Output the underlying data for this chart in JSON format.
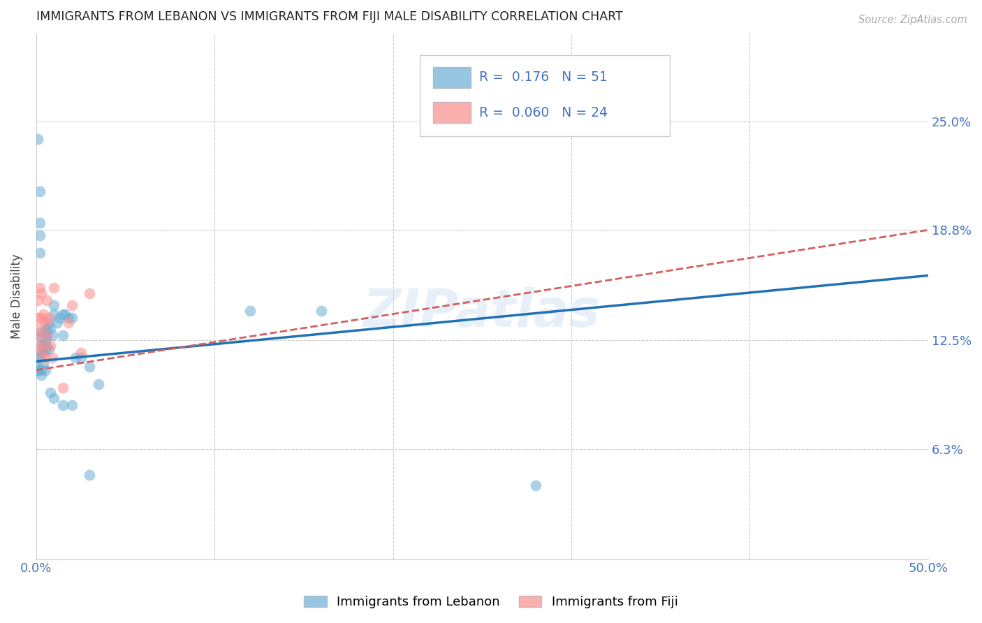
{
  "title": "IMMIGRANTS FROM LEBANON VS IMMIGRANTS FROM FIJI MALE DISABILITY CORRELATION CHART",
  "source": "Source: ZipAtlas.com",
  "ylabel": "Male Disability",
  "xlim": [
    0.0,
    0.5
  ],
  "ylim": [
    0.0,
    0.3
  ],
  "yticks": [
    0.0,
    0.063,
    0.125,
    0.188,
    0.25
  ],
  "ytick_labels": [
    "",
    "6.3%",
    "12.5%",
    "18.8%",
    "25.0%"
  ],
  "xticks": [
    0.0,
    0.1,
    0.2,
    0.3,
    0.4,
    0.5
  ],
  "xtick_labels": [
    "0.0%",
    "",
    "",
    "",
    "",
    "50.0%"
  ],
  "lebanon_R": 0.176,
  "lebanon_N": 51,
  "fiji_R": 0.06,
  "fiji_N": 24,
  "lebanon_color": "#6baed6",
  "fiji_color": "#fc8d8d",
  "lebanon_line_color": "#2171b5",
  "fiji_line_color": "#d45f5f",
  "watermark": "ZIPatlas",
  "lebanon_line_x0": 0.0,
  "lebanon_line_y0": 0.113,
  "lebanon_line_x1": 0.5,
  "lebanon_line_y1": 0.162,
  "fiji_line_x0": 0.0,
  "fiji_line_y0": 0.108,
  "fiji_line_x1": 0.5,
  "fiji_line_y1": 0.188,
  "lebanon_x": [
    0.001,
    0.001,
    0.001,
    0.001,
    0.002,
    0.002,
    0.002,
    0.002,
    0.002,
    0.003,
    0.003,
    0.003,
    0.003,
    0.003,
    0.004,
    0.004,
    0.004,
    0.005,
    0.005,
    0.005,
    0.006,
    0.006,
    0.006,
    0.007,
    0.007,
    0.008,
    0.009,
    0.01,
    0.01,
    0.012,
    0.013,
    0.015,
    0.015,
    0.016,
    0.018,
    0.02,
    0.022,
    0.025,
    0.03,
    0.035,
    0.12,
    0.16,
    0.001,
    0.003,
    0.005,
    0.008,
    0.01,
    0.015,
    0.02,
    0.03,
    0.28
  ],
  "lebanon_y": [
    0.24,
    0.115,
    0.11,
    0.108,
    0.21,
    0.185,
    0.192,
    0.175,
    0.115,
    0.13,
    0.127,
    0.122,
    0.118,
    0.105,
    0.122,
    0.118,
    0.112,
    0.13,
    0.125,
    0.12,
    0.132,
    0.128,
    0.122,
    0.135,
    0.12,
    0.132,
    0.128,
    0.14,
    0.145,
    0.135,
    0.138,
    0.14,
    0.128,
    0.14,
    0.138,
    0.138,
    0.115,
    0.115,
    0.11,
    0.1,
    0.142,
    0.142,
    0.108,
    0.108,
    0.108,
    0.095,
    0.092,
    0.088,
    0.088,
    0.048,
    0.042
  ],
  "fiji_x": [
    0.001,
    0.001,
    0.001,
    0.002,
    0.002,
    0.002,
    0.003,
    0.003,
    0.003,
    0.004,
    0.004,
    0.005,
    0.005,
    0.006,
    0.006,
    0.007,
    0.008,
    0.009,
    0.01,
    0.015,
    0.018,
    0.02,
    0.025,
    0.03
  ],
  "fiji_y": [
    0.148,
    0.138,
    0.122,
    0.155,
    0.132,
    0.128,
    0.152,
    0.138,
    0.118,
    0.14,
    0.122,
    0.135,
    0.115,
    0.148,
    0.128,
    0.138,
    0.122,
    0.115,
    0.155,
    0.098,
    0.135,
    0.145,
    0.118,
    0.152
  ]
}
